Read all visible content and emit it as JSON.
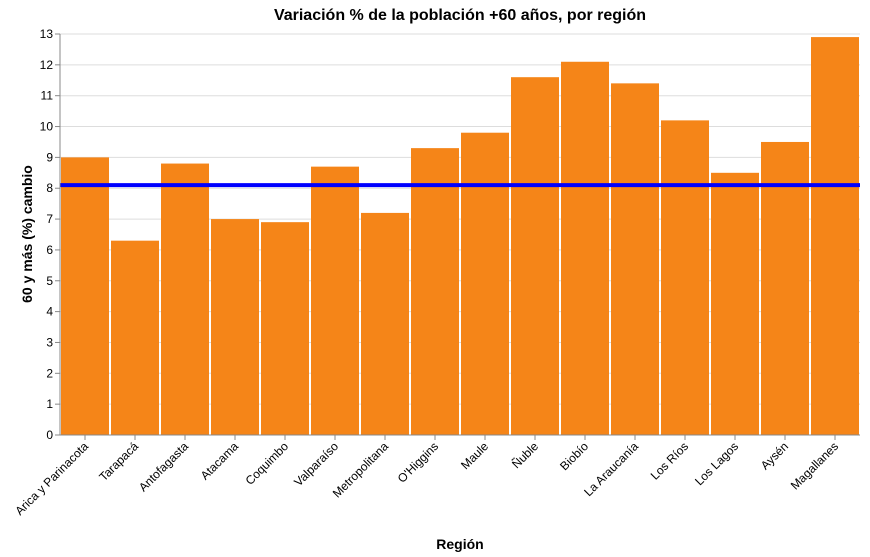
{
  "chart_data": {
    "type": "bar",
    "title": "Variación % de la población +60 años, por región",
    "xlabel": "Región",
    "ylabel": "60 y más (%) cambio",
    "categories": [
      "Arica y Parinacota",
      "Tarapacá",
      "Antofagasta",
      "Atacama",
      "Coquimbo",
      "Valparaíso",
      "Metropolitana",
      "O'Higgins",
      "Maule",
      "Ñuble",
      "Biobío",
      "La Araucanía",
      "Los Ríos",
      "Los Lagos",
      "Aysén",
      "Magallanes"
    ],
    "values": [
      9.0,
      6.3,
      8.8,
      7.0,
      6.9,
      8.7,
      7.2,
      9.3,
      9.8,
      11.6,
      12.1,
      11.4,
      10.2,
      8.5,
      9.5,
      12.9
    ],
    "yticks": [
      "0",
      "1",
      "2",
      "3",
      "4",
      "5",
      "6",
      "7",
      "8",
      "9",
      "10",
      "11",
      "12",
      "13"
    ],
    "ylim": [
      0,
      13
    ],
    "reference_line": 8.1,
    "grid": true,
    "colors": {
      "bar": "#f58518",
      "reference_line": "#0000ff"
    }
  }
}
